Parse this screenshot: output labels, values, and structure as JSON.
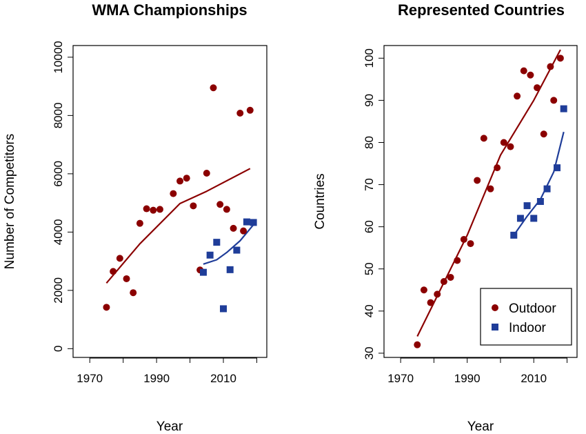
{
  "chart_data": [
    {
      "type": "scatter",
      "title": "WMA Championships",
      "xlabel": "Year",
      "ylabel": "Number of Competitors",
      "xlim": [
        1965,
        2023
      ],
      "ylim": [
        -300,
        10400
      ],
      "xticks": [
        1970,
        1990,
        2010
      ],
      "yticks": [
        0,
        2000,
        4000,
        6000,
        8000,
        10000
      ],
      "grid": false,
      "series": [
        {
          "name": "Outdoor",
          "marker": "circle",
          "color": "#8b0000",
          "points": [
            [
              1975,
              1420
            ],
            [
              1977,
              2650
            ],
            [
              1979,
              3100
            ],
            [
              1981,
              2400
            ],
            [
              1983,
              1920
            ],
            [
              1985,
              4300
            ],
            [
              1987,
              4800
            ],
            [
              1989,
              4750
            ],
            [
              1991,
              4780
            ],
            [
              1995,
              5320
            ],
            [
              1997,
              5750
            ],
            [
              1999,
              5850
            ],
            [
              2001,
              4900
            ],
            [
              2003,
              2700
            ],
            [
              2005,
              6020
            ],
            [
              2007,
              8950
            ],
            [
              2009,
              4950
            ],
            [
              2011,
              4780
            ],
            [
              2013,
              4130
            ],
            [
              2015,
              8080
            ],
            [
              2016,
              4040
            ],
            [
              2018,
              8180
            ]
          ],
          "trend": [
            [
              1975,
              2250
            ],
            [
              1985,
              3600
            ],
            [
              1997,
              4980
            ],
            [
              2005,
              5400
            ],
            [
              2018,
              6180
            ]
          ]
        },
        {
          "name": "Indoor",
          "marker": "square",
          "color": "#1f3d99",
          "points": [
            [
              2004,
              2620
            ],
            [
              2006,
              3210
            ],
            [
              2008,
              3650
            ],
            [
              2010,
              1370
            ],
            [
              2012,
              2710
            ],
            [
              2014,
              3380
            ],
            [
              2017,
              4350
            ],
            [
              2019,
              4330
            ]
          ],
          "trend": [
            [
              2004,
              2900
            ],
            [
              2008,
              3050
            ],
            [
              2011,
              3300
            ],
            [
              2015,
              3700
            ],
            [
              2019,
              4250
            ]
          ]
        }
      ]
    },
    {
      "type": "scatter",
      "title": "Represented Countries",
      "xlabel": "Year",
      "ylabel": "Countries",
      "xlim": [
        1965,
        2023
      ],
      "ylim": [
        29,
        103
      ],
      "xticks": [
        1970,
        1990,
        2010
      ],
      "yticks": [
        30,
        40,
        50,
        60,
        70,
        80,
        90,
        100
      ],
      "grid": false,
      "legend": {
        "placement": "bottom-right",
        "entries": [
          "Outdoor",
          "Indoor"
        ]
      },
      "series": [
        {
          "name": "Outdoor",
          "marker": "circle",
          "color": "#8b0000",
          "points": [
            [
              1975,
              32
            ],
            [
              1977,
              45
            ],
            [
              1979,
              42
            ],
            [
              1981,
              44
            ],
            [
              1983,
              47
            ],
            [
              1985,
              48
            ],
            [
              1987,
              52
            ],
            [
              1989,
              57
            ],
            [
              1991,
              56
            ],
            [
              1993,
              71
            ],
            [
              1995,
              81
            ],
            [
              1997,
              69
            ],
            [
              1999,
              74
            ],
            [
              2001,
              80
            ],
            [
              2003,
              79
            ],
            [
              2005,
              91
            ],
            [
              2007,
              97
            ],
            [
              2009,
              96
            ],
            [
              2011,
              93
            ],
            [
              2013,
              82
            ],
            [
              2015,
              98
            ],
            [
              2016,
              90
            ],
            [
              2018,
              100
            ]
          ],
          "trend": [
            [
              1975,
              34
            ],
            [
              1990,
              58
            ],
            [
              2000,
              77
            ],
            [
              2010,
              90
            ],
            [
              2018,
              102
            ]
          ]
        },
        {
          "name": "Indoor",
          "marker": "square",
          "color": "#1f3d99",
          "points": [
            [
              2004,
              58
            ],
            [
              2006,
              62
            ],
            [
              2008,
              65
            ],
            [
              2010,
              62
            ],
            [
              2012,
              66
            ],
            [
              2014,
              69
            ],
            [
              2017,
              74
            ],
            [
              2019,
              88
            ]
          ],
          "trend": [
            [
              2004,
              58
            ],
            [
              2008,
              62.5
            ],
            [
              2012,
              66.5
            ],
            [
              2016,
              73
            ],
            [
              2019,
              82.5
            ]
          ]
        }
      ]
    }
  ]
}
